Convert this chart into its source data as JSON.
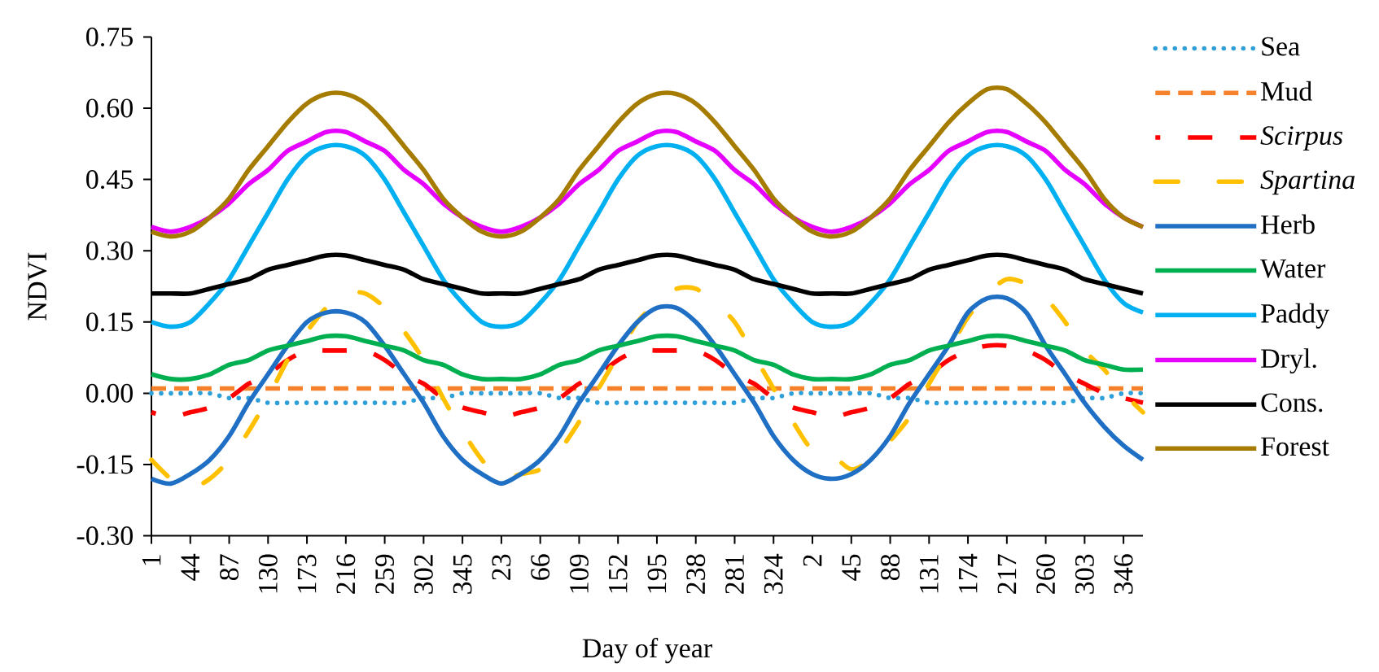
{
  "chart_data": {
    "type": "line",
    "xlabel": "Day of year",
    "ylabel": "NDVI",
    "categories": [
      "1",
      null,
      "44",
      null,
      "87",
      null,
      "130",
      null,
      "173",
      null,
      "216",
      null,
      "259",
      null,
      "302",
      null,
      "345",
      null,
      "23",
      null,
      "66",
      null,
      "109",
      null,
      "152",
      null,
      "195",
      null,
      "238",
      null,
      "281",
      null,
      "324",
      null,
      "2",
      null,
      "45",
      null,
      "88",
      null,
      "131",
      null,
      "174",
      null,
      "217",
      null,
      "260",
      null,
      "303",
      null,
      "346",
      null
    ],
    "ylim": [
      -0.3,
      0.75
    ],
    "yticks": [
      {
        "value": -0.3,
        "label": "-0.30"
      },
      -0.15,
      {
        "value": 0,
        "label": "0.00"
      },
      0.15,
      {
        "value": 0.3,
        "label": "0.30"
      },
      0.45,
      {
        "value": 0.6,
        "label": "0.60"
      },
      0.75
    ],
    "legend": "right",
    "marker": "none",
    "series": [
      {
        "name": "Sea",
        "color": "#2e9fd8",
        "line_style": "dotted",
        "values": [
          0.0,
          0.0,
          0.0,
          0.0,
          -0.01,
          -0.01,
          -0.02,
          -0.02,
          -0.02,
          -0.02,
          -0.02,
          -0.02,
          -0.02,
          -0.02,
          -0.01,
          -0.01,
          0.0,
          0.0,
          0.0,
          0.0,
          0.0,
          -0.01,
          -0.01,
          -0.02,
          -0.02,
          -0.02,
          -0.02,
          -0.02,
          -0.02,
          -0.02,
          -0.02,
          -0.01,
          -0.01,
          0.0,
          0.0,
          0.0,
          0.0,
          0.0,
          -0.01,
          -0.01,
          -0.02,
          -0.02,
          -0.02,
          -0.02,
          -0.02,
          -0.02,
          -0.02,
          -0.02,
          -0.01,
          -0.01,
          0.0,
          0.0
        ]
      },
      {
        "name": "Mud",
        "color": "#f5822a",
        "line_style": "dashed",
        "values": [
          0.01,
          0.01,
          0.01,
          0.01,
          0.01,
          0.01,
          0.01,
          0.01,
          0.01,
          0.01,
          0.01,
          0.01,
          0.01,
          0.01,
          0.01,
          0.01,
          0.01,
          0.01,
          0.01,
          0.01,
          0.01,
          0.01,
          0.01,
          0.01,
          0.01,
          0.01,
          0.01,
          0.01,
          0.01,
          0.01,
          0.01,
          0.01,
          0.01,
          0.01,
          0.01,
          0.01,
          0.01,
          0.01,
          0.01,
          0.01,
          0.01,
          0.01,
          0.01,
          0.01,
          0.01,
          0.01,
          0.01,
          0.01,
          0.01,
          0.01,
          0.01,
          0.01
        ]
      },
      {
        "name": "*Scirpus*",
        "color": "#ff0000",
        "line_style": "long dashed",
        "values": [
          -0.04,
          -0.05,
          -0.04,
          -0.03,
          -0.01,
          0.02,
          0.04,
          0.07,
          0.09,
          0.09,
          0.09,
          0.09,
          0.07,
          0.04,
          0.02,
          -0.01,
          -0.03,
          -0.04,
          -0.05,
          -0.04,
          -0.03,
          -0.01,
          0.02,
          0.04,
          0.07,
          0.09,
          0.09,
          0.09,
          0.09,
          0.07,
          0.04,
          0.02,
          -0.01,
          -0.03,
          -0.04,
          -0.05,
          -0.04,
          -0.03,
          -0.01,
          0.02,
          0.04,
          0.07,
          0.09,
          0.1,
          0.1,
          0.09,
          0.07,
          0.04,
          0.02,
          0.0,
          -0.01,
          -0.02
        ]
      },
      {
        "name": "*Spartina*",
        "color": "#ffc000",
        "line_style": "dash dot dot",
        "values": [
          -0.14,
          -0.18,
          -0.2,
          -0.18,
          -0.14,
          -0.08,
          -0.01,
          0.07,
          0.13,
          0.18,
          0.21,
          0.21,
          0.18,
          0.13,
          0.07,
          -0.01,
          -0.08,
          -0.14,
          -0.18,
          -0.17,
          -0.16,
          -0.12,
          -0.06,
          0.01,
          0.08,
          0.15,
          0.19,
          0.22,
          0.22,
          0.19,
          0.15,
          0.08,
          0.01,
          -0.06,
          -0.12,
          -0.13,
          -0.16,
          -0.14,
          -0.1,
          -0.05,
          0.02,
          0.09,
          0.16,
          0.21,
          0.24,
          0.23,
          0.2,
          0.15,
          0.09,
          0.05,
          0.0,
          -0.04
        ]
      },
      {
        "name": "Herb",
        "color": "#1f6fc5",
        "line_style": "solid",
        "values": [
          -0.18,
          -0.19,
          -0.17,
          -0.14,
          -0.09,
          -0.02,
          0.04,
          0.1,
          0.15,
          0.17,
          0.17,
          0.15,
          0.1,
          0.04,
          -0.02,
          -0.09,
          -0.14,
          -0.17,
          -0.19,
          -0.17,
          -0.14,
          -0.09,
          -0.02,
          0.04,
          0.1,
          0.15,
          0.18,
          0.18,
          0.15,
          0.1,
          0.04,
          -0.02,
          -0.09,
          -0.14,
          -0.17,
          -0.18,
          -0.17,
          -0.14,
          -0.09,
          -0.02,
          0.04,
          0.1,
          0.17,
          0.2,
          0.2,
          0.17,
          0.1,
          0.04,
          -0.02,
          -0.07,
          -0.11,
          -0.14
        ]
      },
      {
        "name": "Water",
        "color": "#00b050",
        "line_style": "solid",
        "values": [
          0.04,
          0.03,
          0.03,
          0.04,
          0.06,
          0.07,
          0.09,
          0.1,
          0.11,
          0.12,
          0.12,
          0.11,
          0.1,
          0.09,
          0.07,
          0.06,
          0.04,
          0.03,
          0.03,
          0.03,
          0.04,
          0.06,
          0.07,
          0.09,
          0.1,
          0.11,
          0.12,
          0.12,
          0.11,
          0.1,
          0.09,
          0.07,
          0.06,
          0.04,
          0.03,
          0.03,
          0.03,
          0.04,
          0.06,
          0.07,
          0.09,
          0.1,
          0.11,
          0.12,
          0.12,
          0.11,
          0.1,
          0.09,
          0.07,
          0.06,
          0.05,
          0.05
        ]
      },
      {
        "name": "Paddy",
        "color": "#00b0f0",
        "line_style": "solid",
        "values": [
          0.15,
          0.14,
          0.15,
          0.19,
          0.24,
          0.31,
          0.38,
          0.45,
          0.5,
          0.52,
          0.52,
          0.5,
          0.45,
          0.38,
          0.31,
          0.24,
          0.19,
          0.15,
          0.14,
          0.15,
          0.19,
          0.24,
          0.31,
          0.38,
          0.45,
          0.5,
          0.52,
          0.52,
          0.5,
          0.45,
          0.38,
          0.31,
          0.24,
          0.19,
          0.15,
          0.14,
          0.15,
          0.19,
          0.24,
          0.31,
          0.38,
          0.45,
          0.5,
          0.52,
          0.52,
          0.5,
          0.45,
          0.38,
          0.31,
          0.24,
          0.19,
          0.17
        ]
      },
      {
        "name": "Dryl.",
        "color": "#e600ff",
        "line_style": "solid",
        "values": [
          0.35,
          0.34,
          0.35,
          0.37,
          0.4,
          0.44,
          0.47,
          0.51,
          0.53,
          0.55,
          0.55,
          0.53,
          0.51,
          0.47,
          0.44,
          0.4,
          0.37,
          0.35,
          0.34,
          0.35,
          0.37,
          0.4,
          0.44,
          0.47,
          0.51,
          0.53,
          0.55,
          0.55,
          0.53,
          0.51,
          0.47,
          0.44,
          0.4,
          0.37,
          0.35,
          0.34,
          0.35,
          0.37,
          0.4,
          0.44,
          0.47,
          0.51,
          0.53,
          0.55,
          0.55,
          0.53,
          0.51,
          0.47,
          0.44,
          0.4,
          0.37,
          0.35
        ]
      },
      {
        "name": "Cons.",
        "color": "#000000",
        "line_style": "solid",
        "values": [
          0.21,
          0.21,
          0.21,
          0.22,
          0.23,
          0.24,
          0.26,
          0.27,
          0.28,
          0.29,
          0.29,
          0.28,
          0.27,
          0.26,
          0.24,
          0.23,
          0.22,
          0.21,
          0.21,
          0.21,
          0.22,
          0.23,
          0.24,
          0.26,
          0.27,
          0.28,
          0.29,
          0.29,
          0.28,
          0.27,
          0.26,
          0.24,
          0.23,
          0.22,
          0.21,
          0.21,
          0.21,
          0.22,
          0.23,
          0.24,
          0.26,
          0.27,
          0.28,
          0.29,
          0.29,
          0.28,
          0.27,
          0.26,
          0.24,
          0.23,
          0.22,
          0.21
        ]
      },
      {
        "name": "Forest",
        "color": "#a67c00",
        "line_style": "solid",
        "values": [
          0.34,
          0.33,
          0.34,
          0.37,
          0.41,
          0.47,
          0.52,
          0.57,
          0.61,
          0.63,
          0.63,
          0.61,
          0.57,
          0.52,
          0.47,
          0.41,
          0.37,
          0.34,
          0.33,
          0.34,
          0.37,
          0.41,
          0.47,
          0.52,
          0.57,
          0.61,
          0.63,
          0.63,
          0.61,
          0.57,
          0.52,
          0.47,
          0.41,
          0.37,
          0.34,
          0.33,
          0.34,
          0.37,
          0.41,
          0.47,
          0.52,
          0.57,
          0.61,
          0.64,
          0.64,
          0.61,
          0.57,
          0.52,
          0.47,
          0.41,
          0.37,
          0.35
        ]
      }
    ]
  }
}
